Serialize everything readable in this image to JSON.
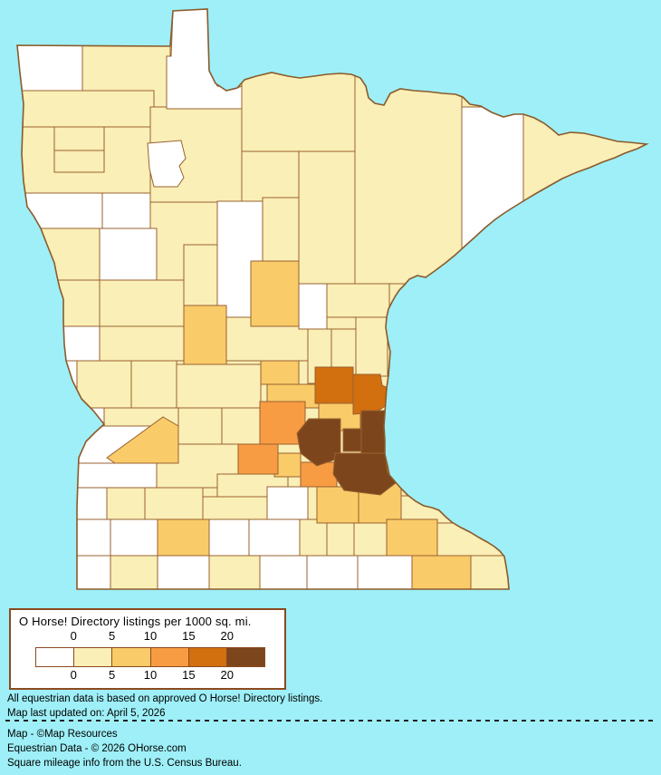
{
  "map": {
    "background_color": "#9EEFF7",
    "county_border_color": "#9A6230",
    "state_border_color": "#8B5A2B",
    "palette": {
      "none": "#FFFFFF",
      "low": "#FAEFB6",
      "medium_low": "#FACB69",
      "medium": "#F89C43",
      "high": "#D26F0F",
      "highest": "#7D451B"
    },
    "counties": [
      {
        "name": "state-underlay",
        "level": "low",
        "r": [
          15,
          8,
          702,
          645
        ]
      },
      {
        "name": "roseau",
        "level": "low",
        "r": [
          91,
          48,
          97,
          72
        ]
      },
      {
        "name": "marshall",
        "level": "low",
        "r": [
          19,
          100,
          151,
          40
        ]
      },
      {
        "name": "polk",
        "level": "low",
        "r": [
          19,
          140,
          147,
          73
        ]
      },
      {
        "name": "pennington",
        "level": "low",
        "r": [
          60,
          140,
          55,
          26
        ]
      },
      {
        "name": "red-lake-county",
        "level": "low",
        "r": [
          60,
          166,
          55,
          24
        ]
      },
      {
        "name": "beltrami",
        "level": "low",
        "r": [
          166,
          118,
          101,
          105
        ]
      },
      {
        "name": "koochiching",
        "level": "low",
        "r": [
          267,
          62,
          125,
          105
        ]
      },
      {
        "name": "itasca",
        "level": "low",
        "r": [
          330,
          167,
          62,
          146
        ]
      },
      {
        "name": "st-louis",
        "level": "low",
        "r": [
          392,
          82,
          118,
          231
        ]
      },
      {
        "name": "cook",
        "level": "low",
        "r": [
          578,
          118,
          136,
          122
        ]
      },
      {
        "name": "clay",
        "level": "low",
        "r": [
          19,
          252,
          91,
          57
        ]
      },
      {
        "name": "wilkin",
        "level": "low",
        "r": [
          19,
          309,
          91,
          51
        ]
      },
      {
        "name": "otter-tail",
        "level": "low",
        "r": [
          110,
          309,
          93,
          51
        ]
      },
      {
        "name": "wadena",
        "level": "low",
        "r": [
          203,
          270,
          37,
          67
        ]
      },
      {
        "name": "cass",
        "level": "low",
        "r": [
          290,
          218,
          40,
          70
        ]
      },
      {
        "name": "carlton",
        "level": "low",
        "r": [
          361,
          313,
          69,
          37
        ]
      },
      {
        "name": "pine",
        "level": "low",
        "r": [
          393,
          350,
          35,
          65
        ]
      },
      {
        "name": "kanabec",
        "level": "low",
        "r": [
          366,
          363,
          27,
          52
        ]
      },
      {
        "name": "mille-lacs",
        "level": "low",
        "r": [
          340,
          363,
          26,
          60
        ]
      },
      {
        "name": "morrison",
        "level": "low",
        "r": [
          250,
          350,
          90,
          48
        ]
      },
      {
        "name": "douglas",
        "level": "low",
        "r": [
          110,
          360,
          93,
          38
        ]
      },
      {
        "name": "stevens",
        "level": "low",
        "r": [
          85,
          398,
          60,
          52
        ]
      },
      {
        "name": "pope",
        "level": "low",
        "r": [
          145,
          398,
          50,
          52
        ]
      },
      {
        "name": "stearns",
        "level": "low",
        "r": [
          195,
          402,
          93,
          48
        ]
      },
      {
        "name": "swift",
        "level": "low",
        "r": [
          115,
          450,
          82,
          21
        ]
      },
      {
        "name": "kandiyohi",
        "level": "low",
        "r": [
          197,
          450,
          48,
          61
        ]
      },
      {
        "name": "meeker",
        "level": "low",
        "r": [
          245,
          450,
          42,
          40
        ]
      },
      {
        "name": "renville",
        "level": "low",
        "r": [
          173,
          490,
          90,
          48
        ]
      },
      {
        "name": "sibley",
        "level": "low",
        "r": [
          240,
          523,
          78,
          25
        ]
      },
      {
        "name": "lyon",
        "level": "low",
        "r": [
          118,
          538,
          42,
          35
        ]
      },
      {
        "name": "redwood",
        "level": "low",
        "r": [
          160,
          538,
          64,
          35
        ]
      },
      {
        "name": "brown-county",
        "level": "low",
        "r": [
          224,
          548,
          71,
          25
        ]
      },
      {
        "name": "waseca",
        "level": "low",
        "r": [
          331,
          573,
          30,
          40
        ]
      },
      {
        "name": "steele",
        "level": "low",
        "r": [
          361,
          573,
          30,
          40
        ]
      },
      {
        "name": "dodge",
        "level": "low",
        "r": [
          391,
          573,
          36,
          40
        ]
      },
      {
        "name": "winona",
        "level": "low",
        "r": [
          483,
          573,
          77,
          40
        ]
      },
      {
        "name": "wabasha",
        "level": "low",
        "r": [
          443,
          547,
          57,
          30
        ]
      },
      {
        "name": "nobles",
        "level": "low",
        "r": [
          122,
          613,
          52,
          37
        ]
      },
      {
        "name": "martin",
        "level": "low",
        "r": [
          231,
          613,
          56,
          37
        ]
      },
      {
        "name": "houston",
        "level": "low",
        "r": [
          520,
          613,
          42,
          37
        ]
      },
      {
        "name": "kittson",
        "level": "none",
        "r": [
          19,
          48,
          72,
          52
        ]
      },
      {
        "name": "lake-of-the-woods",
        "level": "none",
        "p": [
          [
            191,
            12
          ],
          [
            229,
            10
          ],
          [
            231,
            78
          ],
          [
            240,
            95
          ],
          [
            262,
            97
          ],
          [
            267,
            95
          ],
          [
            267,
            120
          ],
          [
            184,
            120
          ],
          [
            184,
            62
          ],
          [
            189,
            62
          ]
        ]
      },
      {
        "name": "lake-county",
        "level": "none",
        "r": [
          510,
          118,
          68,
          190
        ]
      },
      {
        "name": "red-lakes",
        "level": "none",
        "p": [
          [
            163,
            158
          ],
          [
            200,
            155
          ],
          [
            205,
            175
          ],
          [
            198,
            183
          ],
          [
            203,
            196
          ],
          [
            196,
            206
          ],
          [
            170,
            206
          ],
          [
            165,
            186
          ]
        ]
      },
      {
        "name": "norman",
        "level": "none",
        "r": [
          19,
          213,
          94,
          39
        ]
      },
      {
        "name": "mahnomen",
        "level": "none",
        "r": [
          113,
          213,
          53,
          39
        ]
      },
      {
        "name": "becker",
        "level": "none",
        "r": [
          110,
          252,
          63,
          57
        ]
      },
      {
        "name": "hubbard",
        "level": "none",
        "p": [
          [
            240,
            222
          ],
          [
            290,
            222
          ],
          [
            290,
            288
          ],
          [
            278,
            288
          ],
          [
            278,
            350
          ],
          [
            240,
            350
          ]
        ]
      },
      {
        "name": "aitkin",
        "level": "none",
        "r": [
          330,
          313,
          31,
          50
        ]
      },
      {
        "name": "grant",
        "level": "none",
        "r": [
          60,
          360,
          50,
          38
        ]
      },
      {
        "name": "traverse",
        "level": "none",
        "r": [
          50,
          398,
          35,
          52
        ]
      },
      {
        "name": "big-stone",
        "level": "none",
        "r": [
          60,
          450,
          55,
          40
        ]
      },
      {
        "name": "lac-qui-parle",
        "level": "none",
        "r": [
          85,
          470,
          84,
          41
        ]
      },
      {
        "name": "yellow-medicine",
        "level": "none",
        "r": [
          85,
          511,
          88,
          27
        ]
      },
      {
        "name": "lincoln",
        "level": "none",
        "r": [
          85,
          538,
          33,
          44
        ]
      },
      {
        "name": "le-sueur",
        "level": "none",
        "r": [
          295,
          537,
          45,
          36
        ]
      },
      {
        "name": "pipestone",
        "level": "none",
        "r": [
          85,
          573,
          37,
          40
        ]
      },
      {
        "name": "murray",
        "level": "none",
        "r": [
          122,
          573,
          52,
          40
        ]
      },
      {
        "name": "watonwan",
        "level": "none",
        "r": [
          231,
          573,
          44,
          40
        ]
      },
      {
        "name": "blue-earth",
        "level": "none",
        "r": [
          275,
          573,
          56,
          40
        ]
      },
      {
        "name": "rock",
        "level": "none",
        "r": [
          85,
          613,
          37,
          37
        ]
      },
      {
        "name": "jackson",
        "level": "none",
        "r": [
          174,
          613,
          57,
          37
        ]
      },
      {
        "name": "faribault",
        "level": "none",
        "r": [
          287,
          613,
          52,
          37
        ]
      },
      {
        "name": "freeborn",
        "level": "none",
        "r": [
          339,
          613,
          56,
          37
        ]
      },
      {
        "name": "mower",
        "level": "none",
        "r": [
          395,
          613,
          60,
          37
        ]
      },
      {
        "name": "crow-wing",
        "level": "medium_low",
        "r": [
          277,
          288,
          53,
          72
        ]
      },
      {
        "name": "todd",
        "level": "medium_low",
        "r": [
          203,
          337,
          47,
          65
        ]
      },
      {
        "name": "benton",
        "level": "medium_low",
        "r": [
          288,
          398,
          42,
          26
        ]
      },
      {
        "name": "sherburne",
        "level": "medium_low",
        "r": [
          295,
          424,
          57,
          26
        ]
      },
      {
        "name": "anoka",
        "level": "medium_low",
        "r": [
          352,
          438,
          46,
          37
        ]
      },
      {
        "name": "chippewa",
        "level": "medium_low",
        "p": [
          [
            118,
            505
          ],
          [
            180,
            460
          ],
          [
            197,
            470
          ],
          [
            197,
            511
          ],
          [
            127,
            511
          ]
        ]
      },
      {
        "name": "cottonwood",
        "level": "medium_low",
        "r": [
          174,
          573,
          57,
          40
        ]
      },
      {
        "name": "carver",
        "level": "medium_low",
        "r": [
          303,
          500,
          29,
          26
        ]
      },
      {
        "name": "rice",
        "level": "medium_low",
        "r": [
          350,
          537,
          46,
          40
        ]
      },
      {
        "name": "goodhue",
        "level": "medium_low",
        "r": [
          396,
          532,
          47,
          45
        ]
      },
      {
        "name": "olmsted",
        "level": "medium_low",
        "r": [
          427,
          573,
          56,
          40
        ]
      },
      {
        "name": "fillmore",
        "level": "medium_low",
        "r": [
          455,
          613,
          65,
          37
        ]
      },
      {
        "name": "wright",
        "level": "medium",
        "r": [
          287,
          443,
          50,
          47
        ]
      },
      {
        "name": "mcleod",
        "level": "medium",
        "r": [
          263,
          490,
          44,
          33
        ]
      },
      {
        "name": "scott",
        "level": "medium",
        "r": [
          332,
          510,
          40,
          27
        ]
      },
      {
        "name": "isanti",
        "level": "high",
        "r": [
          348,
          405,
          42,
          40
        ]
      },
      {
        "name": "chisago",
        "level": "high",
        "p": [
          [
            390,
            413
          ],
          [
            420,
            413
          ],
          [
            422,
            425
          ],
          [
            432,
            430
          ],
          [
            430,
            445
          ],
          [
            415,
            455
          ],
          [
            390,
            457
          ]
        ]
      },
      {
        "name": "hennepin",
        "level": "highest",
        "p": [
          [
            328,
            478
          ],
          [
            341,
            462
          ],
          [
            376,
            462
          ],
          [
            376,
            505
          ],
          [
            350,
            514
          ],
          [
            332,
            500
          ]
        ]
      },
      {
        "name": "ramsey",
        "level": "highest",
        "r": [
          379,
          473,
          23,
          25
        ]
      },
      {
        "name": "washington",
        "level": "highest",
        "r": [
          399,
          453,
          27,
          63
        ]
      },
      {
        "name": "dakota",
        "level": "highest",
        "p": [
          [
            370,
            500
          ],
          [
            425,
            500
          ],
          [
            428,
            521
          ],
          [
            438,
            532
          ],
          [
            420,
            546
          ],
          [
            380,
            541
          ],
          [
            368,
            523
          ]
        ]
      }
    ]
  },
  "legend": {
    "title": "O Horse! Directory listings per 1000 sq. mi.",
    "levels": [
      "none",
      "low",
      "medium_low",
      "medium",
      "high",
      "highest"
    ],
    "ticks_top": [
      "0",
      "5",
      "10",
      "15",
      "20"
    ],
    "ticks_bottom": [
      "0",
      "5",
      "10",
      "15",
      "20"
    ]
  },
  "footnotes": {
    "line1": "All equestrian data is based on approved O Horse! Directory listings.",
    "line2": "Map last updated on: April 5, 2026",
    "credit1": "Map - ©Map Resources",
    "credit2": "Equestrian Data - © 2026 OHorse.com",
    "credit3": "Square mileage info from the U.S. Census Bureau."
  }
}
